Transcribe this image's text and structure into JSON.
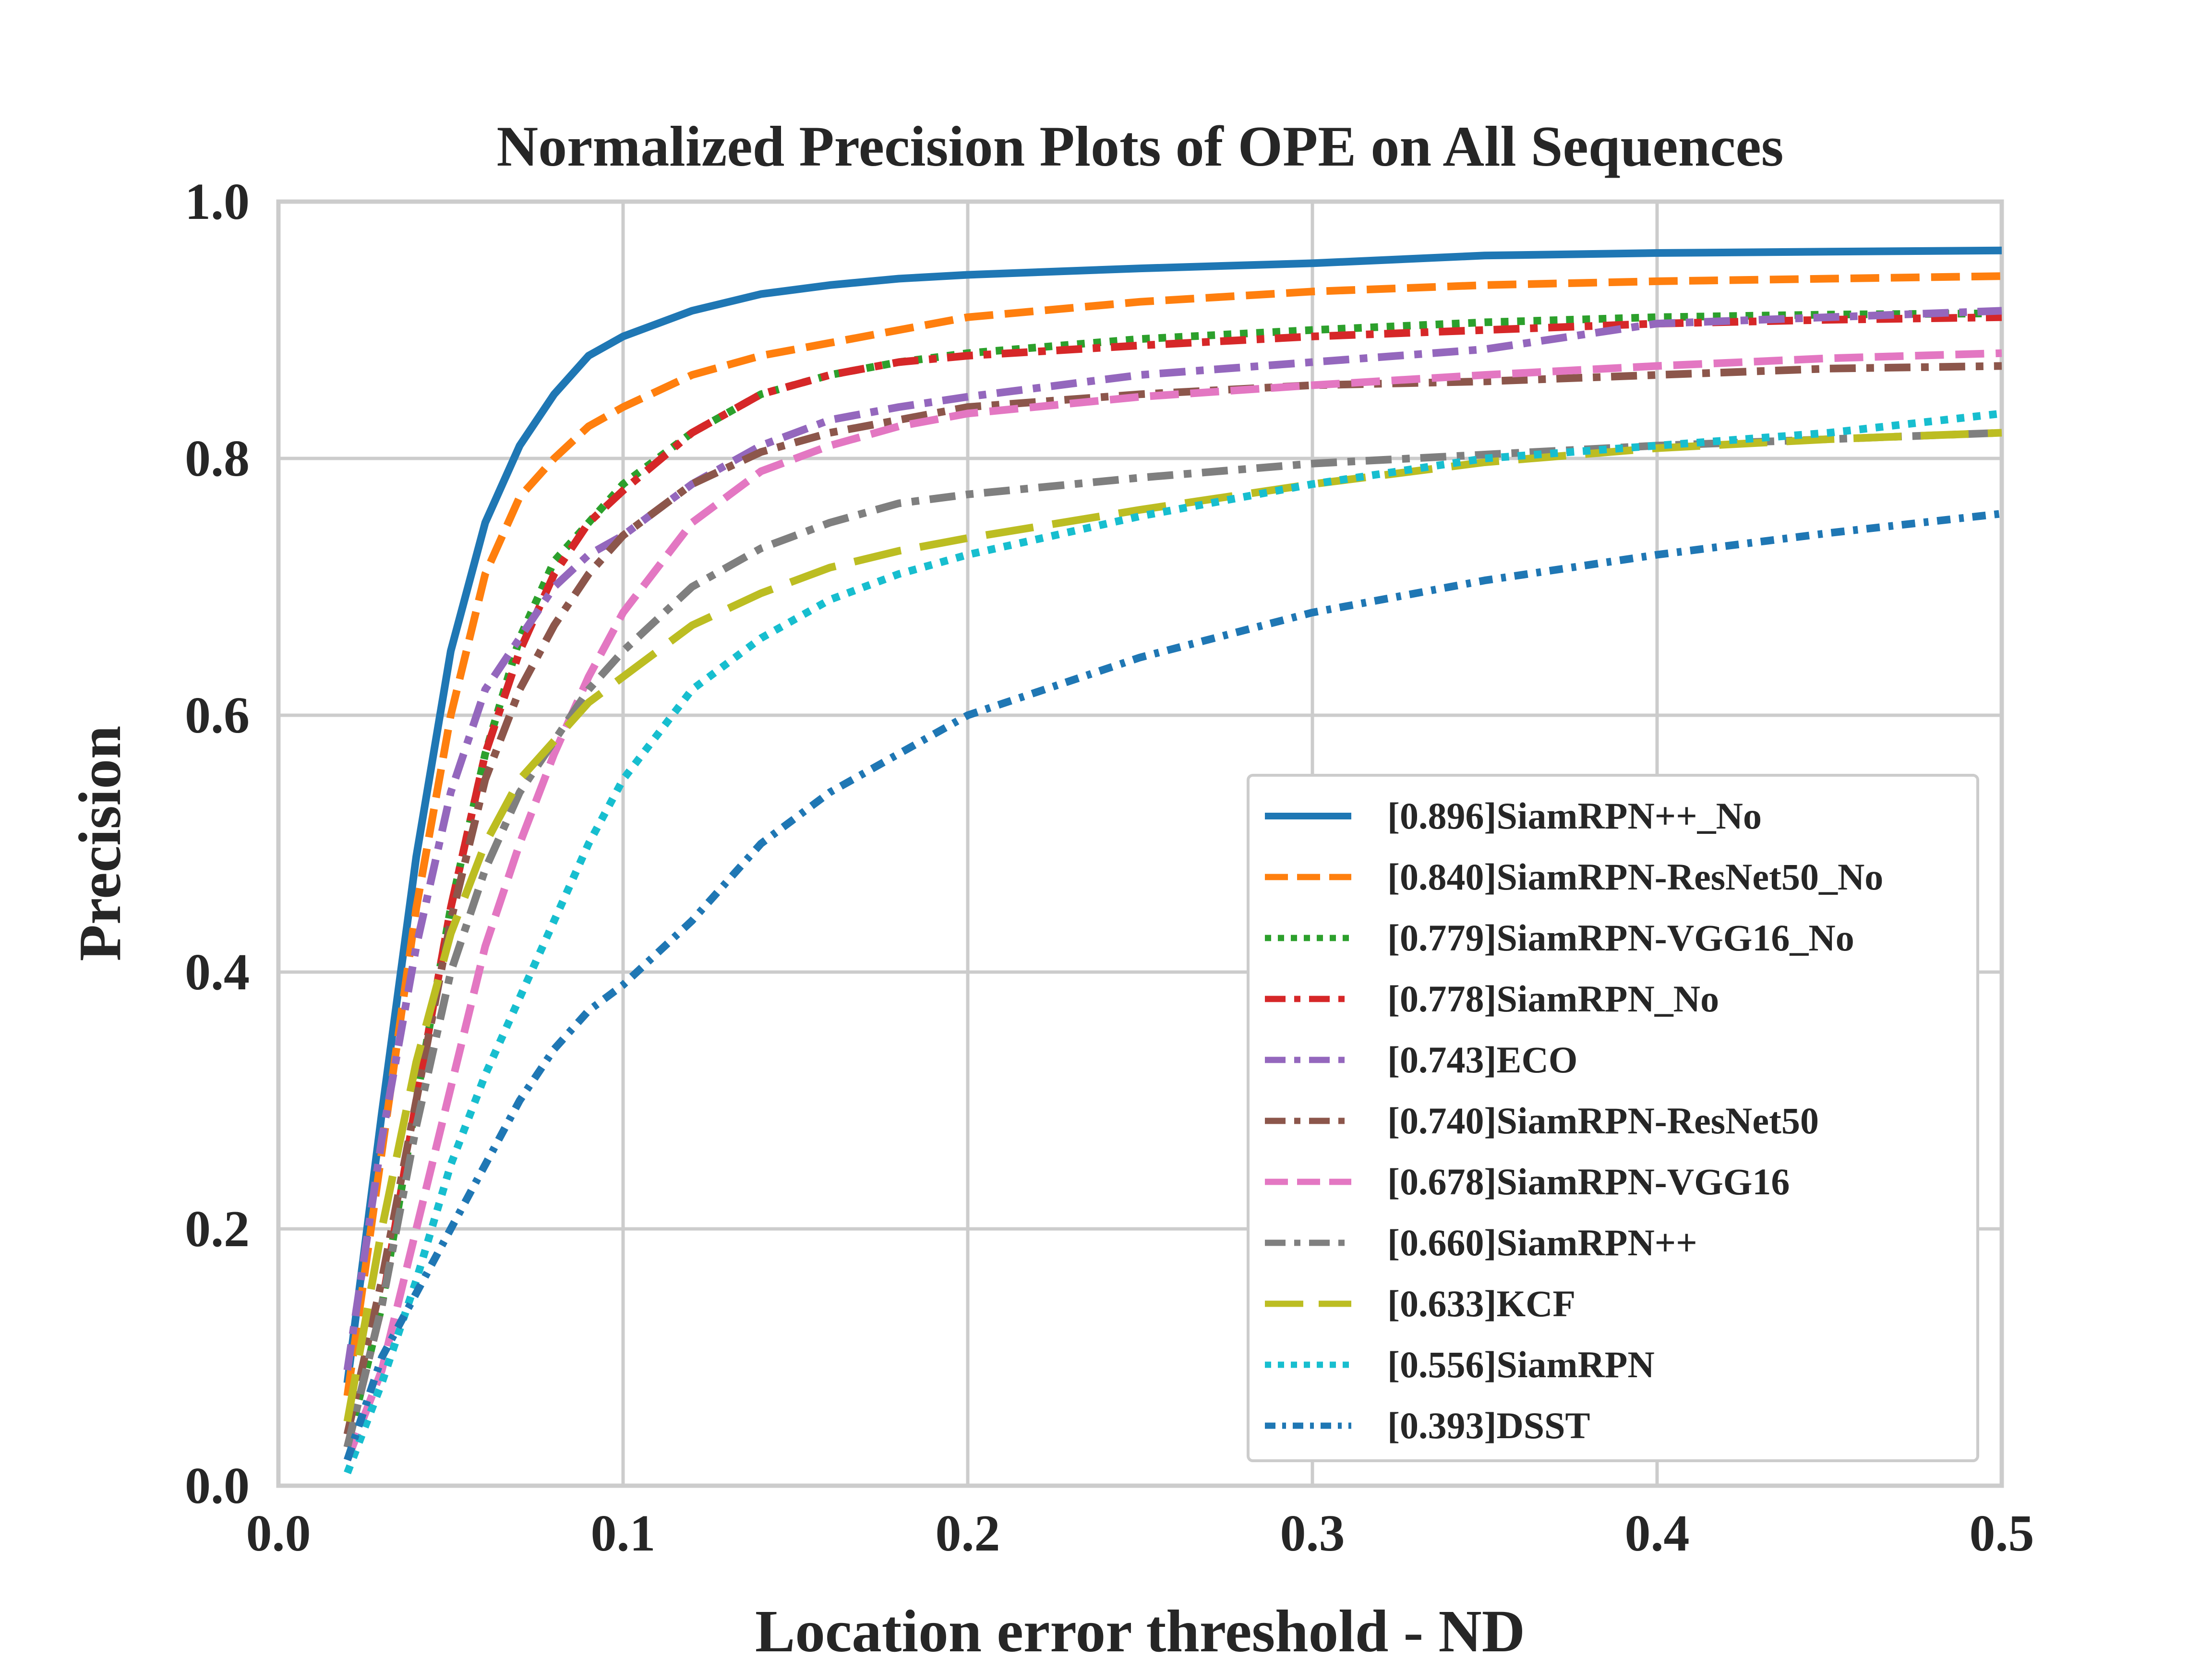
{
  "chart_data": {
    "type": "line",
    "title": "Normalized Precision Plots of OPE on All Sequences",
    "xlabel": "Location error threshold - ND",
    "ylabel": "Precision",
    "xlim": [
      0.0,
      0.5
    ],
    "ylim": [
      0.0,
      1.0
    ],
    "xticks": [
      "0.0",
      "0.1",
      "0.2",
      "0.3",
      "0.4",
      "0.5"
    ],
    "yticks": [
      "0.0",
      "0.2",
      "0.4",
      "0.6",
      "0.8",
      "1.0"
    ],
    "grid": true,
    "legend_position": "lower-right",
    "x": [
      0.02,
      0.03,
      0.04,
      0.05,
      0.06,
      0.07,
      0.08,
      0.09,
      0.1,
      0.12,
      0.14,
      0.16,
      0.18,
      0.2,
      0.25,
      0.3,
      0.35,
      0.4,
      0.45,
      0.5
    ],
    "series": [
      {
        "name": "[0.896]SiamRPN++_No",
        "color": "#1f77b4",
        "style": "solid",
        "values": [
          0.08,
          0.29,
          0.49,
          0.65,
          0.75,
          0.81,
          0.85,
          0.88,
          0.895,
          0.915,
          0.928,
          0.935,
          0.94,
          0.943,
          0.948,
          0.952,
          0.958,
          0.96,
          0.961,
          0.962
        ]
      },
      {
        "name": "[0.840]SiamRPN-ResNet50_No",
        "color": "#ff7f0e",
        "style": "dashed",
        "values": [
          0.07,
          0.26,
          0.45,
          0.6,
          0.71,
          0.77,
          0.8,
          0.825,
          0.84,
          0.865,
          0.88,
          0.89,
          0.9,
          0.91,
          0.922,
          0.93,
          0.935,
          0.938,
          0.94,
          0.942
        ]
      },
      {
        "name": "[0.779]SiamRPN-VGG16_No",
        "color": "#2ca02c",
        "style": "dotted",
        "values": [
          0.03,
          0.14,
          0.3,
          0.45,
          0.57,
          0.66,
          0.72,
          0.75,
          0.78,
          0.82,
          0.85,
          0.865,
          0.875,
          0.882,
          0.893,
          0.9,
          0.906,
          0.91,
          0.912,
          0.913
        ]
      },
      {
        "name": "[0.778]SiamRPN_No",
        "color": "#d62728",
        "style": "dashdot",
        "values": [
          0.03,
          0.14,
          0.3,
          0.45,
          0.57,
          0.65,
          0.71,
          0.75,
          0.775,
          0.82,
          0.85,
          0.865,
          0.875,
          0.88,
          0.888,
          0.895,
          0.9,
          0.905,
          0.908,
          0.91
        ]
      },
      {
        "name": "[0.743]ECO",
        "color": "#9467bd",
        "style": "dashdot",
        "values": [
          0.09,
          0.27,
          0.42,
          0.54,
          0.62,
          0.66,
          0.7,
          0.725,
          0.74,
          0.78,
          0.81,
          0.83,
          0.84,
          0.848,
          0.865,
          0.875,
          0.885,
          0.905,
          0.91,
          0.915
        ]
      },
      {
        "name": "[0.740]SiamRPN-ResNet50",
        "color": "#8c564b",
        "style": "dashdot",
        "values": [
          0.04,
          0.16,
          0.3,
          0.44,
          0.55,
          0.62,
          0.67,
          0.71,
          0.74,
          0.78,
          0.805,
          0.82,
          0.83,
          0.84,
          0.85,
          0.857,
          0.86,
          0.865,
          0.87,
          0.872
        ]
      },
      {
        "name": "[0.678]SiamRPN-VGG16",
        "color": "#e377c2",
        "style": "dashed",
        "values": [
          0.02,
          0.09,
          0.2,
          0.31,
          0.42,
          0.5,
          0.57,
          0.63,
          0.68,
          0.75,
          0.79,
          0.81,
          0.825,
          0.835,
          0.848,
          0.857,
          0.865,
          0.872,
          0.878,
          0.882
        ]
      },
      {
        "name": "[0.660]SiamRPN++",
        "color": "#7f7f7f",
        "style": "dashdot",
        "values": [
          0.03,
          0.14,
          0.28,
          0.4,
          0.48,
          0.54,
          0.58,
          0.62,
          0.65,
          0.7,
          0.73,
          0.75,
          0.765,
          0.772,
          0.785,
          0.796,
          0.803,
          0.81,
          0.815,
          0.82
        ]
      },
      {
        "name": "[0.633]KCF",
        "color": "#bcbd22",
        "style": "long-dashed",
        "values": [
          0.05,
          0.2,
          0.33,
          0.43,
          0.5,
          0.55,
          0.58,
          0.61,
          0.63,
          0.67,
          0.695,
          0.715,
          0.728,
          0.738,
          0.76,
          0.78,
          0.797,
          0.808,
          0.815,
          0.82
        ]
      },
      {
        "name": "[0.556]SiamRPN",
        "color": "#17becf",
        "style": "dotted",
        "values": [
          0.01,
          0.08,
          0.16,
          0.25,
          0.32,
          0.38,
          0.44,
          0.5,
          0.55,
          0.62,
          0.66,
          0.69,
          0.71,
          0.725,
          0.755,
          0.78,
          0.8,
          0.81,
          0.82,
          0.835
        ]
      },
      {
        "name": "[0.393]DSST",
        "color": "#1f77b4",
        "style": "dense-dashdot",
        "values": [
          0.02,
          0.1,
          0.15,
          0.2,
          0.25,
          0.3,
          0.34,
          0.37,
          0.39,
          0.44,
          0.5,
          0.54,
          0.57,
          0.6,
          0.645,
          0.68,
          0.705,
          0.725,
          0.742,
          0.757
        ]
      }
    ]
  }
}
